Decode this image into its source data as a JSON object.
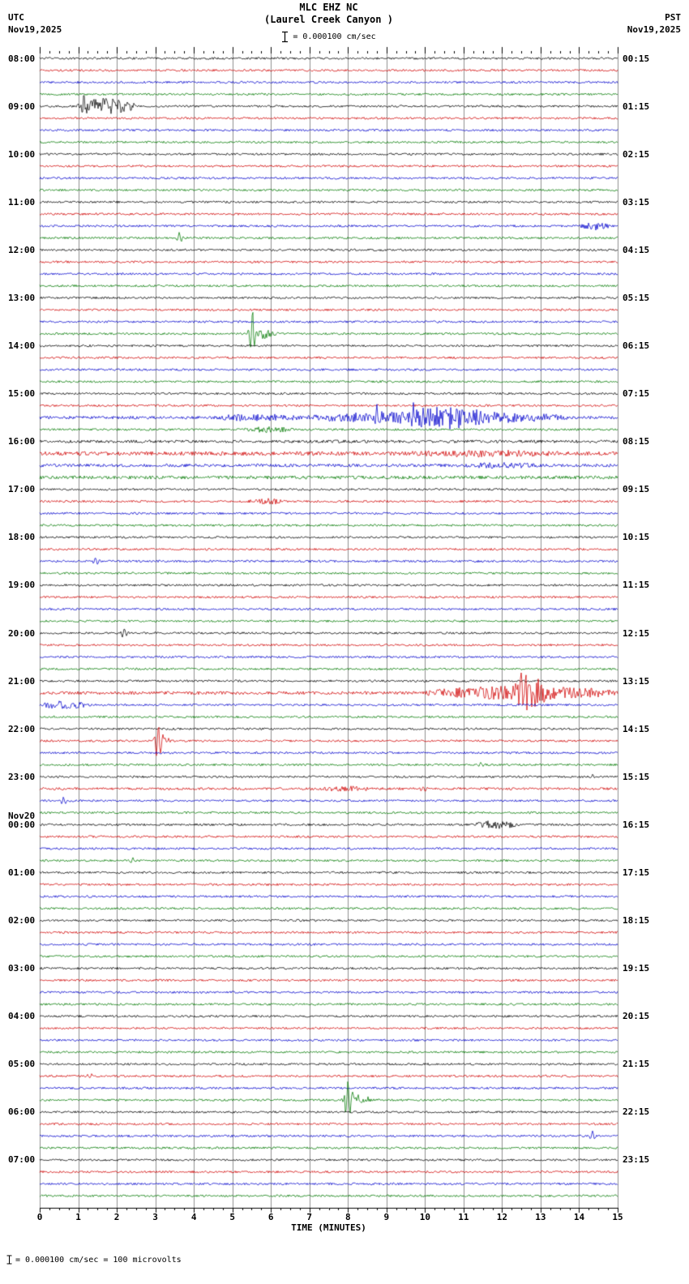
{
  "header": {
    "station_title": "MLC EHZ NC",
    "location_title": "(Laurel Creek Canyon )",
    "left_tz": "UTC",
    "left_date": "Nov19,2025",
    "right_tz": "PST",
    "right_date": "Nov19,2025",
    "scale_text": "= 0.000100 cm/sec"
  },
  "footer": {
    "text": "= 0.000100 cm/sec =    100 microvolts"
  },
  "chart_data": {
    "type": "line",
    "subtype": "helicorder-seismogram",
    "xlabel": "TIME (MINUTES)",
    "x_ticks": [
      "0",
      "1",
      "2",
      "3",
      "4",
      "5",
      "6",
      "7",
      "8",
      "9",
      "10",
      "11",
      "12",
      "13",
      "14",
      "15"
    ],
    "minutes_per_line": 15,
    "trace_count": 96,
    "color_cycle": [
      "#000000",
      "#d00000",
      "#0000cc",
      "#007a00"
    ],
    "grid_color": "#8f8f8f",
    "base_noise_amp": 1.3,
    "noisy_traces": {
      "30": 1.8,
      "32": 1.8,
      "33": 2.4,
      "34": 1.9,
      "35": 2.0,
      "53": 1.9,
      "61": 1.5
    },
    "left_labels": [
      {
        "trace": 0,
        "label": "08:00"
      },
      {
        "trace": 4,
        "label": "09:00"
      },
      {
        "trace": 8,
        "label": "10:00"
      },
      {
        "trace": 12,
        "label": "11:00"
      },
      {
        "trace": 16,
        "label": "12:00"
      },
      {
        "trace": 20,
        "label": "13:00"
      },
      {
        "trace": 24,
        "label": "14:00"
      },
      {
        "trace": 28,
        "label": "15:00"
      },
      {
        "trace": 32,
        "label": "16:00"
      },
      {
        "trace": 36,
        "label": "17:00"
      },
      {
        "trace": 40,
        "label": "18:00"
      },
      {
        "trace": 44,
        "label": "19:00"
      },
      {
        "trace": 48,
        "label": "20:00"
      },
      {
        "trace": 52,
        "label": "21:00"
      },
      {
        "trace": 56,
        "label": "22:00"
      },
      {
        "trace": 60,
        "label": "23:00"
      },
      {
        "trace": 64,
        "label": "00:00",
        "extra": "Nov20"
      },
      {
        "trace": 68,
        "label": "01:00"
      },
      {
        "trace": 72,
        "label": "02:00"
      },
      {
        "trace": 76,
        "label": "03:00"
      },
      {
        "trace": 80,
        "label": "04:00"
      },
      {
        "trace": 84,
        "label": "05:00"
      },
      {
        "trace": 88,
        "label": "06:00"
      },
      {
        "trace": 92,
        "label": "07:00"
      }
    ],
    "right_labels": [
      {
        "trace": 0,
        "label": "00:15"
      },
      {
        "trace": 4,
        "label": "01:15"
      },
      {
        "trace": 8,
        "label": "02:15"
      },
      {
        "trace": 12,
        "label": "03:15"
      },
      {
        "trace": 16,
        "label": "04:15"
      },
      {
        "trace": 20,
        "label": "05:15"
      },
      {
        "trace": 24,
        "label": "06:15"
      },
      {
        "trace": 28,
        "label": "07:15"
      },
      {
        "trace": 32,
        "label": "08:15"
      },
      {
        "trace": 36,
        "label": "09:15"
      },
      {
        "trace": 40,
        "label": "10:15"
      },
      {
        "trace": 44,
        "label": "11:15"
      },
      {
        "trace": 48,
        "label": "12:15"
      },
      {
        "trace": 52,
        "label": "13:15"
      },
      {
        "trace": 56,
        "label": "14:15"
      },
      {
        "trace": 60,
        "label": "15:15"
      },
      {
        "trace": 64,
        "label": "16:15"
      },
      {
        "trace": 68,
        "label": "17:15"
      },
      {
        "trace": 72,
        "label": "18:15"
      },
      {
        "trace": 76,
        "label": "19:15"
      },
      {
        "trace": 80,
        "label": "20:15"
      },
      {
        "trace": 84,
        "label": "21:15"
      },
      {
        "trace": 88,
        "label": "22:15"
      },
      {
        "trace": 92,
        "label": "23:15"
      }
    ],
    "events": [
      {
        "trace": 4,
        "type": "burst",
        "start": 0.95,
        "end": 2.5,
        "amp": 9
      },
      {
        "trace": 4,
        "type": "spike",
        "center": 1.15,
        "amp": 12
      },
      {
        "trace": 14,
        "type": "burst",
        "start": 14.0,
        "end": 14.8,
        "amp": 4
      },
      {
        "trace": 15,
        "type": "spike",
        "center": 3.62,
        "amp": 6
      },
      {
        "trace": 23,
        "type": "spike",
        "center": 5.52,
        "amp": 30
      },
      {
        "trace": 23,
        "type": "burst",
        "start": 5.4,
        "end": 6.2,
        "amp": 5
      },
      {
        "trace": 30,
        "type": "burst",
        "start": 4.6,
        "end": 6.8,
        "amp": 3
      },
      {
        "trace": 30,
        "type": "burst",
        "start": 6.9,
        "end": 13.8,
        "amp": 6
      },
      {
        "trace": 30,
        "type": "burst",
        "start": 9.5,
        "end": 11.5,
        "amp": 7
      },
      {
        "trace": 30,
        "type": "spike",
        "center": 8.75,
        "amp": 14
      },
      {
        "trace": 30,
        "type": "spike",
        "center": 9.7,
        "amp": 10
      },
      {
        "trace": 31,
        "type": "burst",
        "start": 5.3,
        "end": 6.6,
        "amp": 2.5
      },
      {
        "trace": 33,
        "type": "burst",
        "start": 9.5,
        "end": 13.5,
        "amp": 2
      },
      {
        "trace": 34,
        "type": "burst",
        "start": 11.0,
        "end": 13.0,
        "amp": 2
      },
      {
        "trace": 37,
        "type": "burst",
        "start": 5.4,
        "end": 6.4,
        "amp": 2.5
      },
      {
        "trace": 42,
        "type": "spike",
        "center": 1.45,
        "amp": 5
      },
      {
        "trace": 48,
        "type": "spike",
        "center": 2.2,
        "amp": 6
      },
      {
        "trace": 53,
        "type": "burst",
        "start": 10.0,
        "end": 15.0,
        "amp": 7
      },
      {
        "trace": 53,
        "type": "burst",
        "start": 12.3,
        "end": 13.2,
        "amp": 10
      },
      {
        "trace": 53,
        "type": "spike",
        "center": 12.55,
        "amp": -26
      },
      {
        "trace": 54,
        "type": "burst",
        "start": 0.0,
        "end": 1.3,
        "amp": 4
      },
      {
        "trace": 57,
        "type": "spike",
        "center": 3.08,
        "amp": 22
      },
      {
        "trace": 57,
        "type": "burst",
        "start": 2.95,
        "end": 3.4,
        "amp": 4
      },
      {
        "trace": 59,
        "type": "spike",
        "center": 11.45,
        "amp": 2.5
      },
      {
        "trace": 60,
        "type": "spike",
        "center": 14.35,
        "amp": 3
      },
      {
        "trace": 61,
        "type": "burst",
        "start": 7.3,
        "end": 8.6,
        "amp": 2
      },
      {
        "trace": 61,
        "type": "spike",
        "center": 9.95,
        "amp": 3.5
      },
      {
        "trace": 62,
        "type": "spike",
        "center": 0.62,
        "amp": 4.5
      },
      {
        "trace": 64,
        "type": "burst",
        "start": 11.3,
        "end": 12.4,
        "amp": 4
      },
      {
        "trace": 67,
        "type": "spike",
        "center": 2.42,
        "amp": 3
      },
      {
        "trace": 85,
        "type": "spike",
        "center": 1.3,
        "amp": -3
      },
      {
        "trace": 87,
        "type": "spike",
        "center": 8.0,
        "amp": 26
      },
      {
        "trace": 87,
        "type": "burst",
        "start": 7.8,
        "end": 8.6,
        "amp": 6
      },
      {
        "trace": 90,
        "type": "spike",
        "center": 14.35,
        "amp": 6
      }
    ]
  }
}
